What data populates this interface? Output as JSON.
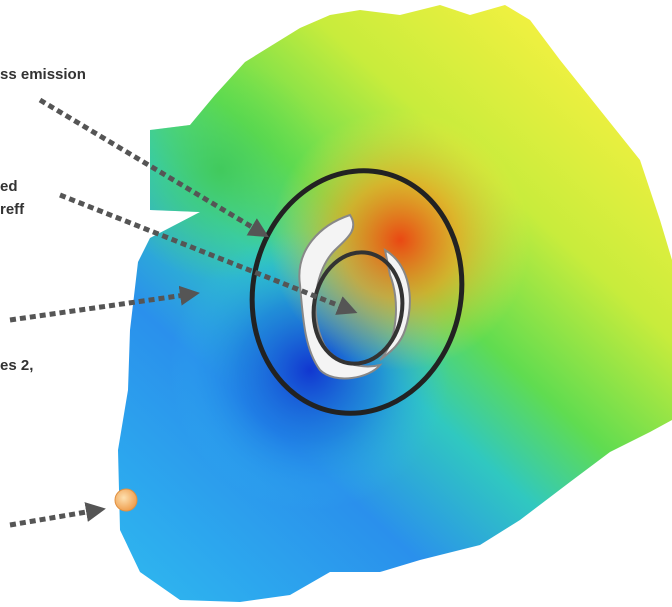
{
  "annotations": [
    {
      "text": "ss emission"
    },
    {
      "text": "ed"
    },
    {
      "text": "reff"
    },
    {
      "text": "es 2,"
    }
  ]
}
